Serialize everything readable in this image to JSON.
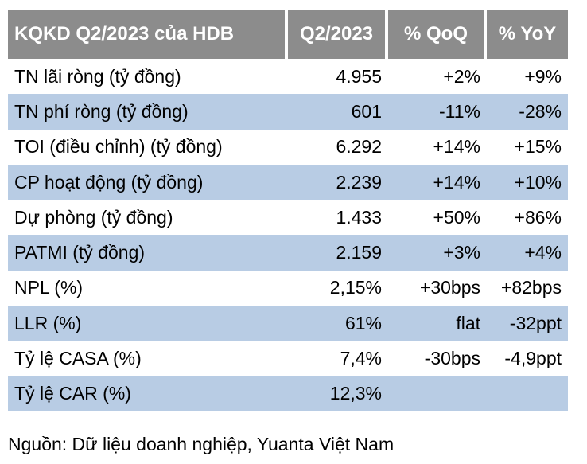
{
  "header": {
    "title": "KQKD Q2/2023 của HDB",
    "col_period": "Q2/2023",
    "col_qoq": "% QoQ",
    "col_yoy": "% YoY"
  },
  "rows": [
    {
      "label": "TN lãi ròng (tỷ đồng)",
      "value": "4.955",
      "qoq": "+2%",
      "yoy": "+9%"
    },
    {
      "label": "TN phí ròng (tỷ đồng)",
      "value": "601",
      "qoq": "-11%",
      "yoy": "-28%"
    },
    {
      "label": "TOI (điều chỉnh) (tỷ đồng)",
      "value": "6.292",
      "qoq": "+14%",
      "yoy": "+15%"
    },
    {
      "label": "CP hoạt động (tỷ đồng)",
      "value": "2.239",
      "qoq": "+14%",
      "yoy": "+10%"
    },
    {
      "label": "Dự phòng (tỷ đồng)",
      "value": "1.433",
      "qoq": "+50%",
      "yoy": "+86%"
    },
    {
      "label": "PATMI (tỷ đồng)",
      "value": "2.159",
      "qoq": "+3%",
      "yoy": "+4%"
    },
    {
      "label": "NPL (%)",
      "value": "2,15%",
      "qoq": "+30bps",
      "yoy": "+82bps"
    },
    {
      "label": "LLR (%)",
      "value": "61%",
      "qoq": "flat",
      "yoy": "-32ppt"
    },
    {
      "label": "Tỷ lệ CASA (%)",
      "value": "7,4%",
      "qoq": "-30bps",
      "yoy": "-4,9ppt"
    },
    {
      "label": "Tỷ lệ CAR (%)",
      "value": "12,3%",
      "qoq": "",
      "yoy": ""
    }
  ],
  "footer": {
    "source": "Nguồn: Dữ liệu doanh nghiệp, Yuanta Việt Nam"
  },
  "colors": {
    "header_bg": "#8c8c8c",
    "alt_row_bg": "#b8cce4"
  }
}
